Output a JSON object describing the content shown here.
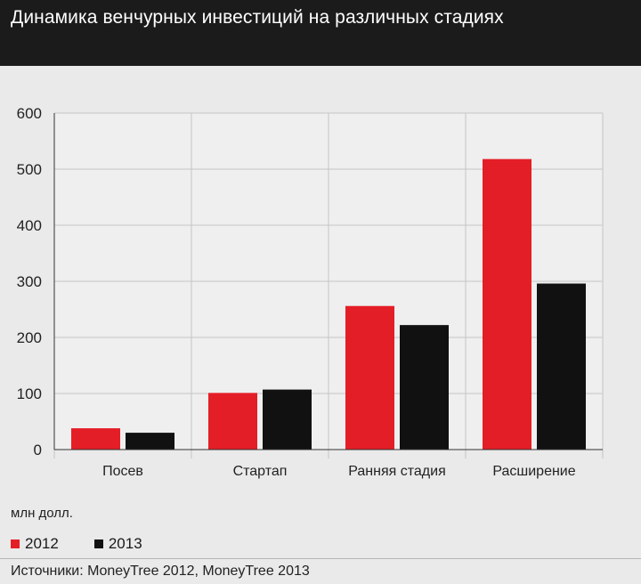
{
  "header": {
    "title": "Динамика венчурных инвестиций на различных стадиях"
  },
  "chart_data": {
    "type": "bar",
    "title": "Динамика венчурных инвестиций на различных стадиях",
    "categories": [
      "Посев",
      "Стартап",
      "Ранняя стадия",
      "Расширение"
    ],
    "series": [
      {
        "name": "2012",
        "color": "#e41e26",
        "values": [
          38,
          101,
          256,
          518
        ]
      },
      {
        "name": "2013",
        "color": "#111111",
        "values": [
          30,
          107,
          222,
          296
        ]
      }
    ],
    "ylim": [
      0,
      600
    ],
    "yticks": [
      "0",
      "100",
      "200",
      "300",
      "400",
      "500",
      "600"
    ],
    "xlabel": "",
    "ylabel": "млн долл.",
    "grid": true,
    "legend_position": "bottom-left"
  },
  "unit_label": "млн долл.",
  "legend": [
    {
      "label": "2012",
      "color": "#e41e26"
    },
    {
      "label": "2013",
      "color": "#111111"
    }
  ],
  "source": "Источники: MoneyTree 2012, MoneyTree 2013"
}
